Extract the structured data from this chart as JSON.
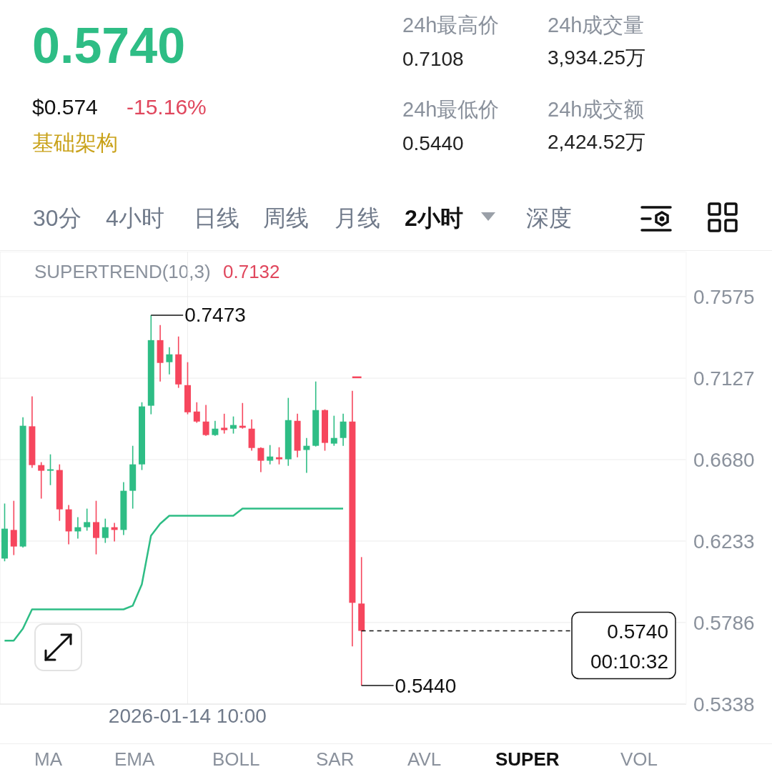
{
  "chart_data": {
    "type": "candlestick",
    "title": "0.5740",
    "categories": [
      null,
      null,
      null,
      null,
      null,
      null,
      null,
      null,
      null,
      null,
      null,
      null,
      null,
      null,
      null,
      null,
      null,
      null,
      null,
      null,
      "2026-01-14 10:00",
      null,
      null,
      null,
      null,
      null,
      null,
      null,
      null,
      null,
      null,
      null,
      null,
      null,
      null,
      null,
      null,
      null,
      null,
      null,
      null,
      null,
      null,
      null,
      null,
      null,
      null,
      null,
      null,
      null,
      null,
      null,
      null,
      null,
      null,
      null,
      null,
      null,
      null,
      null,
      null,
      null,
      null,
      null,
      null,
      null,
      null,
      null,
      null,
      null,
      null,
      null,
      null,
      null,
      null
    ],
    "ohlc": [
      [
        0.6137,
        0.6439,
        0.6122,
        0.6301
      ],
      [
        0.6294,
        0.6454,
        0.6156,
        0.6203
      ],
      [
        0.6203,
        0.6913,
        0.6197,
        0.6866
      ],
      [
        0.6863,
        0.7027,
        0.6635,
        0.665
      ],
      [
        0.665,
        0.6666,
        0.6466,
        0.6619
      ],
      [
        0.6619,
        0.6709,
        0.654,
        0.6627
      ],
      [
        0.6623,
        0.6654,
        0.6344,
        0.6407
      ],
      [
        0.6407,
        0.6431,
        0.6215,
        0.6286
      ],
      [
        0.6286,
        0.6364,
        0.6246,
        0.6309
      ],
      [
        0.6309,
        0.6411,
        0.629,
        0.6337
      ],
      [
        0.6337,
        0.6454,
        0.616,
        0.625
      ],
      [
        0.625,
        0.6356,
        0.6223,
        0.6309
      ],
      [
        0.6309,
        0.6333,
        0.6231,
        0.6294
      ],
      [
        0.6294,
        0.6556,
        0.6266,
        0.6509
      ],
      [
        0.6509,
        0.6756,
        0.6411,
        0.6654
      ],
      [
        0.6654,
        0.6995,
        0.6623,
        0.6972
      ],
      [
        0.6976,
        0.7473,
        0.6929,
        0.7336
      ],
      [
        0.7336,
        0.7419,
        0.7109,
        0.7211
      ],
      [
        0.7215,
        0.7297,
        0.7148,
        0.7258
      ],
      [
        0.7258,
        0.7356,
        0.7074,
        0.7093
      ],
      [
        0.7089,
        0.7215,
        0.6929,
        0.694
      ],
      [
        0.6944,
        0.6995,
        0.6882,
        0.6889
      ],
      [
        0.6889,
        0.698,
        0.6811,
        0.6815
      ],
      [
        0.6815,
        0.6893,
        0.6811,
        0.685
      ],
      [
        0.6855,
        0.6932,
        0.6823,
        0.6842
      ],
      [
        0.685,
        0.6917,
        0.6823,
        0.687
      ],
      [
        0.6866,
        0.6991,
        0.685,
        0.6855
      ],
      [
        0.685,
        0.6901,
        0.6729,
        0.6744
      ],
      [
        0.6744,
        0.6748,
        0.6611,
        0.6674
      ],
      [
        0.6674,
        0.676,
        0.6654,
        0.6697
      ],
      [
        0.6693,
        0.6748,
        0.6654,
        0.6682
      ],
      [
        0.6682,
        0.7019,
        0.6646,
        0.6897
      ],
      [
        0.6893,
        0.6932,
        0.6693,
        0.6729
      ],
      [
        0.6733,
        0.6799,
        0.6607,
        0.6756
      ],
      [
        0.6756,
        0.7109,
        0.6752,
        0.6952
      ],
      [
        0.6952,
        0.6956,
        0.6729,
        0.6772
      ],
      [
        0.6768,
        0.6921,
        0.6756,
        0.6799
      ],
      [
        0.6799,
        0.6932,
        0.6756,
        0.6889
      ],
      [
        0.6889,
        0.7058,
        0.5655,
        0.5894
      ],
      [
        0.589,
        0.6145,
        0.544,
        0.574
      ],
      null,
      null,
      null,
      null,
      null,
      null,
      null,
      null,
      null,
      null,
      null,
      null,
      null,
      null,
      null,
      null,
      null,
      null,
      null,
      null,
      null,
      null,
      null,
      null,
      null,
      null,
      null,
      null,
      null,
      null,
      null,
      null,
      null,
      null,
      null
    ],
    "colors": [
      "#2ebd85",
      "#f6465d",
      "#2ebd85",
      "#f6465d",
      "#f6465d",
      "#2ebd85",
      "#f6465d",
      "#f6465d",
      "#2ebd85",
      "#2ebd85",
      "#f6465d",
      "#2ebd85",
      "#f6465d",
      "#2ebd85",
      "#2ebd85",
      "#2ebd85",
      "#2ebd85",
      "#f6465d",
      "#2ebd85",
      "#f6465d",
      "#f6465d",
      "#f6465d",
      "#f6465d",
      "#2ebd85",
      "#f6465d",
      "#2ebd85",
      "#f6465d",
      "#f6465d",
      "#f6465d",
      "#2ebd85",
      "#f6465d",
      "#2ebd85",
      "#f6465d",
      "#2ebd85",
      "#2ebd85",
      "#f6465d",
      "#2ebd85",
      "#2ebd85",
      "#f6465d",
      "#f6465d",
      null,
      null,
      null,
      null,
      null,
      null,
      null,
      null,
      null,
      null,
      null,
      null,
      null,
      null,
      null,
      null,
      null,
      null,
      null,
      null,
      null,
      null,
      null,
      null,
      null,
      null,
      null,
      null,
      null,
      null,
      null,
      null,
      null,
      null,
      null
    ],
    "series": [
      {
        "type": "line",
        "color": "#2ebd85",
        "values": [
          0.5686,
          0.5686,
          0.5752,
          0.5858,
          0.5858,
          0.5858,
          0.5858,
          0.5858,
          0.5858,
          0.5858,
          0.5858,
          0.5858,
          0.5858,
          0.5858,
          0.5878,
          0.5995,
          0.6262,
          0.6328,
          0.6372,
          0.6372,
          0.6372,
          0.6372,
          0.6372,
          0.6372,
          0.6372,
          0.6372,
          0.6411,
          0.6411,
          0.6411,
          0.6411,
          0.6411,
          0.6411,
          0.6411,
          0.6411,
          0.6411,
          0.6411,
          0.6411,
          0.6411,
          null,
          null,
          null,
          null,
          null,
          null,
          null,
          null,
          null,
          null,
          null,
          null,
          null,
          null,
          null,
          null,
          null,
          null,
          null,
          null,
          null,
          null,
          null,
          null,
          null,
          null,
          null,
          null,
          null,
          null,
          null,
          null,
          null,
          null,
          null,
          null,
          null
        ]
      },
      {
        "type": "line",
        "color": "#f6465d",
        "values": [
          null,
          null,
          null,
          null,
          null,
          null,
          null,
          null,
          null,
          null,
          null,
          null,
          null,
          null,
          null,
          null,
          null,
          null,
          null,
          null,
          null,
          null,
          null,
          null,
          null,
          null,
          null,
          null,
          null,
          null,
          null,
          null,
          null,
          null,
          null,
          null,
          null,
          null,
          0.7132,
          0.7132,
          null,
          null,
          null,
          null,
          null,
          null,
          null,
          null,
          null,
          null,
          null,
          null,
          null,
          null,
          null,
          null,
          null,
          null,
          null,
          null,
          null,
          null,
          null,
          null,
          null,
          null,
          null,
          null,
          null,
          null,
          null,
          null,
          null,
          null,
          null
        ]
      }
    ],
    "ylim": [
      0.5338,
      0.7822
    ],
    "yticks": [
      0.7575,
      0.7127,
      {
        "value": 0.668,
        "label": "0.6680"
      },
      0.6233,
      0.5786,
      0.5338
    ],
    "grid": true,
    "ref_lines": [
      {
        "axis": "y",
        "value": 0.574,
        "label": "0.5740",
        "line_style": "dashed",
        "color": "#111111"
      }
    ],
    "annotations": [
      "$0.574",
      "-15.16%",
      "基础架构",
      "24h最高价",
      "0.7108",
      "24h成交量",
      "3,934.25万",
      "24h最低价",
      "0.5440",
      "24h成交额",
      "2,424.52万",
      "30分",
      "4小时",
      "日线",
      "周线",
      "月线",
      "2小时",
      "深度",
      "SUPERTREND(10,3)",
      "0.7132",
      "00:10:32",
      "MA",
      "EMA",
      "BOLL",
      "SAR",
      "AVL",
      "SUPER",
      "VOL",
      "0.7473",
      "0.5440"
    ]
  }
}
